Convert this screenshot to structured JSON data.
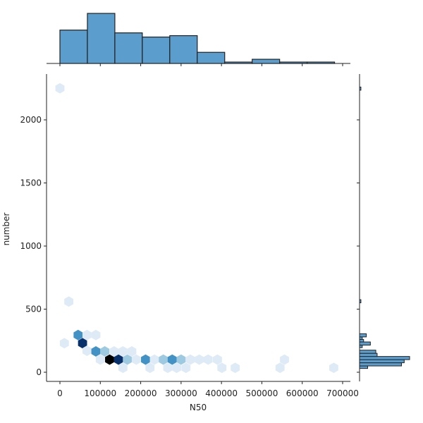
{
  "chart_data": {
    "type": "hexbin-jointplot",
    "xlabel": "N50",
    "ylabel": "number",
    "xlim": [
      -35000,
      715000
    ],
    "ylim": [
      -80,
      2350
    ],
    "x_ticks": [
      0,
      100000,
      200000,
      300000,
      400000,
      500000,
      600000,
      700000
    ],
    "x_tick_labels": [
      "0",
      "100000",
      "200000",
      "300000",
      "400000",
      "500000",
      "600000",
      "700000"
    ],
    "y_ticks": [
      0,
      500,
      1000,
      1500,
      2000
    ],
    "y_tick_labels": [
      "0",
      "500",
      "1000",
      "1500",
      "2000"
    ],
    "hexbins": [
      {
        "x": 0,
        "y": 2250,
        "count": 1
      },
      {
        "x": 22000,
        "y": 560,
        "count": 1
      },
      {
        "x": 11000,
        "y": 230,
        "count": 1
      },
      {
        "x": 45000,
        "y": 295,
        "count": 3
      },
      {
        "x": 67000,
        "y": 295,
        "count": 1
      },
      {
        "x": 89000,
        "y": 295,
        "count": 1
      },
      {
        "x": 56000,
        "y": 230,
        "count": 6
      },
      {
        "x": 67000,
        "y": 170,
        "count": 1
      },
      {
        "x": 89000,
        "y": 165,
        "count": 3
      },
      {
        "x": 111000,
        "y": 165,
        "count": 2
      },
      {
        "x": 134000,
        "y": 165,
        "count": 1
      },
      {
        "x": 156000,
        "y": 165,
        "count": 1
      },
      {
        "x": 178000,
        "y": 165,
        "count": 1
      },
      {
        "x": 100000,
        "y": 100,
        "count": 1
      },
      {
        "x": 123000,
        "y": 100,
        "count": 7
      },
      {
        "x": 145000,
        "y": 100,
        "count": 6
      },
      {
        "x": 167000,
        "y": 100,
        "count": 2
      },
      {
        "x": 189000,
        "y": 100,
        "count": 1
      },
      {
        "x": 212000,
        "y": 100,
        "count": 3
      },
      {
        "x": 234000,
        "y": 100,
        "count": 1
      },
      {
        "x": 256000,
        "y": 100,
        "count": 2
      },
      {
        "x": 278000,
        "y": 100,
        "count": 3
      },
      {
        "x": 300000,
        "y": 100,
        "count": 2
      },
      {
        "x": 323000,
        "y": 100,
        "count": 1
      },
      {
        "x": 345000,
        "y": 100,
        "count": 1
      },
      {
        "x": 367000,
        "y": 100,
        "count": 1
      },
      {
        "x": 390000,
        "y": 100,
        "count": 1
      },
      {
        "x": 556000,
        "y": 100,
        "count": 1
      },
      {
        "x": 156000,
        "y": 35,
        "count": 1
      },
      {
        "x": 223000,
        "y": 35,
        "count": 1
      },
      {
        "x": 267000,
        "y": 35,
        "count": 1
      },
      {
        "x": 289000,
        "y": 35,
        "count": 1
      },
      {
        "x": 312000,
        "y": 35,
        "count": 1
      },
      {
        "x": 401000,
        "y": 35,
        "count": 1
      },
      {
        "x": 434000,
        "y": 35,
        "count": 1
      },
      {
        "x": 545000,
        "y": 35,
        "count": 1
      },
      {
        "x": 678000,
        "y": 35,
        "count": 1
      }
    ],
    "x_histogram": {
      "bin_edges": [
        0,
        68000,
        136000,
        204000,
        272000,
        340000,
        408000,
        476000,
        544000,
        612000,
        680000
      ],
      "counts": [
        12,
        18,
        11,
        9.5,
        10,
        4,
        0.5,
        1.5,
        0.5,
        0.5
      ]
    },
    "y_histogram": {
      "bins": [
        {
          "y0": 30,
          "y1": 50,
          "count": 6
        },
        {
          "y0": 50,
          "y1": 75,
          "count": 31
        },
        {
          "y0": 75,
          "y1": 100,
          "count": 33
        },
        {
          "y0": 100,
          "y1": 125,
          "count": 37
        },
        {
          "y0": 125,
          "y1": 150,
          "count": 13
        },
        {
          "y0": 150,
          "y1": 175,
          "count": 12
        },
        {
          "y0": 195,
          "y1": 215,
          "count": 2
        },
        {
          "y0": 215,
          "y1": 240,
          "count": 8
        },
        {
          "y0": 240,
          "y1": 260,
          "count": 3
        },
        {
          "y0": 260,
          "y1": 280,
          "count": 2
        },
        {
          "y0": 280,
          "y1": 305,
          "count": 5
        },
        {
          "y0": 550,
          "y1": 575,
          "count": 1
        },
        {
          "y0": 2235,
          "y1": 2260,
          "count": 1
        }
      ]
    },
    "colors": {
      "hex_scale": [
        "#ffffff",
        "#deebf7",
        "#9ecae1",
        "#4292c6",
        "#2171b5",
        "#08519c",
        "#08306b",
        "#000000"
      ],
      "bar_fill": "#5b9dcd",
      "bar_edge": "#222222"
    }
  }
}
